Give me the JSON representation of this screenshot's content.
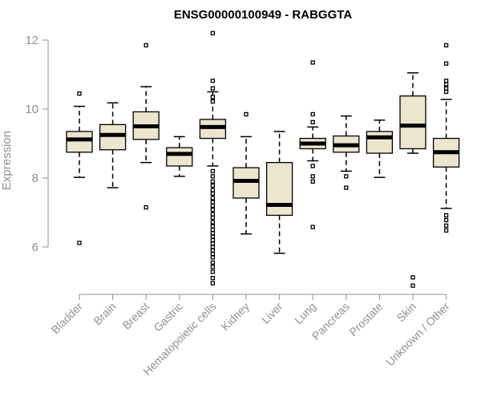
{
  "chart_data": {
    "type": "boxplot",
    "title": "ENSG00000100949 - RABGGTA",
    "xlabel": "",
    "ylabel": "Expression",
    "ylim": [
      4.8,
      12.2
    ],
    "yticks": [
      6,
      8,
      10,
      12
    ],
    "colors": {
      "box_fill": "#ede6cf",
      "stroke": "#000000",
      "axis": "#909090"
    },
    "categories": [
      "Bladder",
      "Brain",
      "Breast",
      "Gastric",
      "Hematopoietic cells",
      "Kidney",
      "Liver",
      "Lung",
      "Pancreas",
      "Prostate",
      "Skin",
      "Unknown / Other"
    ],
    "boxes": [
      {
        "name": "Bladder",
        "whisker_low": 8.02,
        "q1": 8.75,
        "median": 9.12,
        "q3": 9.35,
        "whisker_high": 10.08,
        "outliers": [
          10.45,
          6.12
        ]
      },
      {
        "name": "Brain",
        "whisker_low": 7.72,
        "q1": 8.82,
        "median": 9.25,
        "q3": 9.55,
        "whisker_high": 10.18,
        "outliers": []
      },
      {
        "name": "Breast",
        "whisker_low": 8.45,
        "q1": 9.12,
        "median": 9.5,
        "q3": 9.92,
        "whisker_high": 10.65,
        "outliers": [
          11.85,
          7.15
        ]
      },
      {
        "name": "Gastric",
        "whisker_low": 8.05,
        "q1": 8.35,
        "median": 8.7,
        "q3": 8.88,
        "whisker_high": 9.2,
        "outliers": []
      },
      {
        "name": "Hematopoietic cells",
        "whisker_low": 8.35,
        "q1": 9.15,
        "median": 9.48,
        "q3": 9.7,
        "whisker_high": 10.5,
        "outliers": [
          12.2,
          10.82,
          10.6,
          10.35,
          10.22,
          8.2,
          8.05,
          7.9,
          7.78,
          7.65,
          7.55,
          7.42,
          7.3,
          7.2,
          7.08,
          6.95,
          6.85,
          6.72,
          6.6,
          6.5,
          6.4,
          6.3,
          6.2,
          6.1,
          6.0,
          5.9,
          5.8,
          5.7,
          5.55,
          5.42,
          5.28,
          5.1,
          4.95
        ]
      },
      {
        "name": "Kidney",
        "whisker_low": 6.38,
        "q1": 7.42,
        "median": 7.92,
        "q3": 8.3,
        "whisker_high": 9.2,
        "outliers": [
          9.85
        ]
      },
      {
        "name": "Liver",
        "whisker_low": 5.82,
        "q1": 6.92,
        "median": 7.22,
        "q3": 8.45,
        "whisker_high": 9.35,
        "outliers": []
      },
      {
        "name": "Lung",
        "whisker_low": 8.5,
        "q1": 8.85,
        "median": 9.0,
        "q3": 9.15,
        "whisker_high": 9.48,
        "outliers": [
          11.35,
          9.85,
          9.62,
          8.35,
          8.05,
          7.9,
          6.58
        ]
      },
      {
        "name": "Pancreas",
        "whisker_low": 8.2,
        "q1": 8.75,
        "median": 8.95,
        "q3": 9.22,
        "whisker_high": 9.8,
        "outliers": [
          8.05,
          7.72
        ]
      },
      {
        "name": "Prostate",
        "whisker_low": 8.02,
        "q1": 8.72,
        "median": 9.18,
        "q3": 9.35,
        "whisker_high": 9.68,
        "outliers": []
      },
      {
        "name": "Skin",
        "whisker_low": 8.72,
        "q1": 8.85,
        "median": 9.52,
        "q3": 10.38,
        "whisker_high": 11.05,
        "outliers": [
          5.12,
          4.88
        ]
      },
      {
        "name": "Unknown / Other",
        "whisker_low": 7.12,
        "q1": 8.32,
        "median": 8.75,
        "q3": 9.15,
        "whisker_high": 10.28,
        "outliers": [
          11.85,
          11.32,
          10.82,
          10.72,
          10.6,
          10.5,
          6.92,
          6.78,
          6.62,
          6.48
        ]
      }
    ]
  }
}
